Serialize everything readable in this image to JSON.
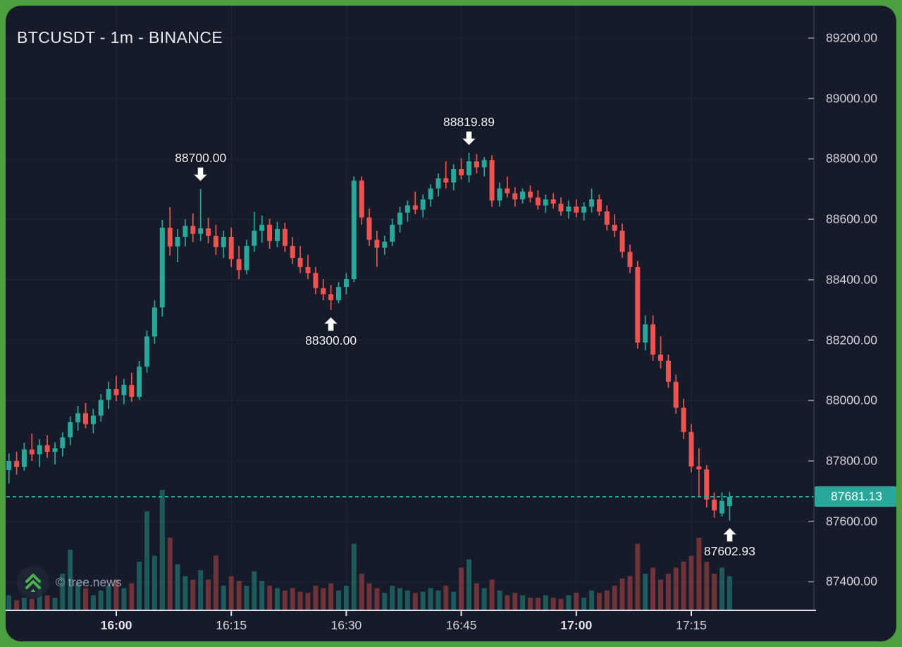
{
  "header": {
    "title": "BTCUSDT - 1m - BINANCE"
  },
  "watermark": {
    "icon": "double-chevron-up-icon",
    "text": "© tree.news"
  },
  "chart_data": {
    "type": "candlestick",
    "title": "BTCUSDT - 1m - BINANCE",
    "symbol": "BTCUSDT",
    "interval": "1m",
    "exchange": "BINANCE",
    "last_price": 87681.13,
    "last_price_label": "87681.13",
    "colors": {
      "up": "#2aa79b",
      "down": "#ef5350",
      "volume_up": "rgba(42,167,155,0.45)",
      "volume_down": "rgba(239,83,80,0.42)",
      "price_line": "#2aa79b",
      "frame": "#4c9f3f",
      "background": "#151b28",
      "axis_text": "#d1d4dc"
    },
    "y_axis": {
      "tick_labels": [
        "89200.00",
        "89000.00",
        "88800.00",
        "88600.00",
        "88400.00",
        "88200.00",
        "88000.00",
        "87800.00",
        "87600.00",
        "87400.00"
      ],
      "range": [
        87300,
        89330
      ],
      "grid": true
    },
    "x_axis": {
      "tick_labels": [
        {
          "label": "16:00",
          "bold": true
        },
        {
          "label": "16:15",
          "bold": false
        },
        {
          "label": "16:30",
          "bold": false
        },
        {
          "label": "16:45",
          "bold": false
        },
        {
          "label": "17:00",
          "bold": true
        },
        {
          "label": "17:15",
          "bold": false
        }
      ],
      "grid": true
    },
    "annotations": [
      {
        "label": "88700.00",
        "time": "16:11",
        "price": 88700.0,
        "direction": "down"
      },
      {
        "label": "88300.00",
        "time": "16:28",
        "price": 88300.0,
        "direction": "up"
      },
      {
        "label": "88819.89",
        "time": "16:46",
        "price": 88819.89,
        "direction": "down"
      },
      {
        "label": "87602.93",
        "time": "17:20",
        "price": 87602.93,
        "direction": "up"
      }
    ],
    "candles": [
      [
        "15:46",
        87770,
        87825,
        87725,
        87800,
        0.12
      ],
      [
        "15:47",
        87800,
        87830,
        87755,
        87780,
        0.08
      ],
      [
        "15:48",
        87780,
        87860,
        87768,
        87838,
        0.1
      ],
      [
        "15:49",
        87838,
        87890,
        87800,
        87822,
        0.09
      ],
      [
        "15:50",
        87822,
        87872,
        87780,
        87852,
        0.26
      ],
      [
        "15:51",
        87852,
        87885,
        87810,
        87830,
        0.12
      ],
      [
        "15:52",
        87830,
        87862,
        87788,
        87842,
        0.1
      ],
      [
        "15:53",
        87842,
        87895,
        87815,
        87878,
        0.3
      ],
      [
        "15:54",
        87878,
        87948,
        87852,
        87928,
        0.5
      ],
      [
        "15:55",
        87928,
        87982,
        87900,
        87958,
        0.22
      ],
      [
        "15:56",
        87958,
        87992,
        87908,
        87922,
        0.18
      ],
      [
        "15:57",
        87922,
        87972,
        87892,
        87950,
        0.12
      ],
      [
        "15:58",
        87950,
        88022,
        87930,
        88002,
        0.16
      ],
      [
        "15:59",
        88002,
        88062,
        87972,
        88038,
        0.2
      ],
      [
        "16:00",
        88038,
        88082,
        87998,
        88018,
        0.25
      ],
      [
        "16:01",
        88018,
        88072,
        87988,
        88052,
        0.18
      ],
      [
        "16:02",
        88052,
        88092,
        87995,
        88012,
        0.22
      ],
      [
        "16:03",
        88012,
        88132,
        88002,
        88112,
        0.4
      ],
      [
        "16:04",
        88112,
        88232,
        88092,
        88212,
        0.82
      ],
      [
        "16:05",
        88212,
        88332,
        88188,
        88308,
        0.45
      ],
      [
        "16:06",
        88308,
        88598,
        88278,
        88572,
        1.0
      ],
      [
        "16:07",
        88572,
        88640,
        88480,
        88510,
        0.6
      ],
      [
        "16:08",
        88510,
        88568,
        88458,
        88542,
        0.38
      ],
      [
        "16:09",
        88542,
        88600,
        88510,
        88578,
        0.28
      ],
      [
        "16:10",
        88578,
        88620,
        88525,
        88552,
        0.25
      ],
      [
        "16:11",
        88552,
        88700,
        88528,
        88570,
        0.33
      ],
      [
        "16:12",
        88570,
        88605,
        88520,
        88545,
        0.25
      ],
      [
        "16:13",
        88545,
        88582,
        88482,
        88508,
        0.45
      ],
      [
        "16:14",
        88508,
        88562,
        88472,
        88542,
        0.2
      ],
      [
        "16:15",
        88542,
        88572,
        88442,
        88468,
        0.28
      ],
      [
        "16:16",
        88468,
        88512,
        88402,
        88432,
        0.24
      ],
      [
        "16:17",
        88432,
        88532,
        88418,
        88512,
        0.2
      ],
      [
        "16:18",
        88512,
        88625,
        88492,
        88562,
        0.32
      ],
      [
        "16:19",
        88562,
        88612,
        88522,
        88582,
        0.24
      ],
      [
        "16:20",
        88582,
        88602,
        88502,
        88528,
        0.2
      ],
      [
        "16:21",
        88528,
        88592,
        88508,
        88568,
        0.18
      ],
      [
        "16:22",
        88568,
        88588,
        88492,
        88512,
        0.16
      ],
      [
        "16:23",
        88512,
        88542,
        88452,
        88472,
        0.18
      ],
      [
        "16:24",
        88472,
        88512,
        88422,
        88442,
        0.15
      ],
      [
        "16:25",
        88442,
        88482,
        88402,
        88422,
        0.14
      ],
      [
        "16:26",
        88422,
        88442,
        88352,
        88372,
        0.2
      ],
      [
        "16:27",
        88372,
        88402,
        88332,
        88352,
        0.18
      ],
      [
        "16:28",
        88352,
        88382,
        88300,
        88332,
        0.22
      ],
      [
        "16:29",
        88332,
        88392,
        88322,
        88376,
        0.16
      ],
      [
        "16:30",
        88376,
        88422,
        88352,
        88402,
        0.2
      ],
      [
        "16:31",
        88402,
        88742,
        88392,
        88728,
        0.55
      ],
      [
        "16:32",
        88728,
        88742,
        88582,
        88606,
        0.3
      ],
      [
        "16:33",
        88606,
        88636,
        88512,
        88532,
        0.22
      ],
      [
        "16:34",
        88532,
        88562,
        88442,
        88506,
        0.18
      ],
      [
        "16:35",
        88506,
        88546,
        88482,
        88526,
        0.14
      ],
      [
        "16:36",
        88526,
        88602,
        88512,
        88582,
        0.2
      ],
      [
        "16:37",
        88582,
        88642,
        88556,
        88622,
        0.18
      ],
      [
        "16:38",
        88622,
        88662,
        88592,
        88646,
        0.16
      ],
      [
        "16:39",
        88646,
        88692,
        88616,
        88632,
        0.14
      ],
      [
        "16:40",
        88632,
        88682,
        88606,
        88666,
        0.15
      ],
      [
        "16:41",
        88666,
        88716,
        88642,
        88702,
        0.18
      ],
      [
        "16:42",
        88702,
        88752,
        88676,
        88736,
        0.16
      ],
      [
        "16:43",
        88736,
        88792,
        88702,
        88722,
        0.2
      ],
      [
        "16:44",
        88722,
        88782,
        88696,
        88766,
        0.15
      ],
      [
        "16:45",
        88766,
        88802,
        88732,
        88746,
        0.35
      ],
      [
        "16:46",
        88746,
        88819.89,
        88722,
        88792,
        0.42
      ],
      [
        "16:47",
        88792,
        88816,
        88752,
        88772,
        0.22
      ],
      [
        "16:48",
        88772,
        88806,
        88742,
        88796,
        0.18
      ],
      [
        "16:49",
        88796,
        88812,
        88642,
        88662,
        0.25
      ],
      [
        "16:50",
        88662,
        88722,
        88642,
        88702,
        0.16
      ],
      [
        "16:51",
        88702,
        88742,
        88672,
        88686,
        0.12
      ],
      [
        "16:52",
        88686,
        88706,
        88642,
        88666,
        0.14
      ],
      [
        "16:53",
        88666,
        88702,
        88652,
        88692,
        0.12
      ],
      [
        "16:54",
        88692,
        88712,
        88656,
        88672,
        0.1
      ],
      [
        "16:55",
        88672,
        88696,
        88632,
        88646,
        0.1
      ],
      [
        "16:56",
        88646,
        88682,
        88622,
        88666,
        0.12
      ],
      [
        "16:57",
        88666,
        88686,
        88636,
        88652,
        0.1
      ],
      [
        "16:58",
        88652,
        88672,
        88612,
        88626,
        0.09
      ],
      [
        "16:59",
        88626,
        88662,
        88602,
        88642,
        0.12
      ],
      [
        "17:00",
        88642,
        88666,
        88606,
        88622,
        0.14
      ],
      [
        "17:01",
        88622,
        88656,
        88596,
        88642,
        0.1
      ],
      [
        "17:02",
        88642,
        88702,
        88622,
        88666,
        0.16
      ],
      [
        "17:03",
        88666,
        88682,
        88612,
        88626,
        0.14
      ],
      [
        "17:04",
        88626,
        88646,
        88562,
        88582,
        0.16
      ],
      [
        "17:05",
        88582,
        88616,
        88542,
        88562,
        0.2
      ],
      [
        "17:06",
        88562,
        88586,
        88472,
        88492,
        0.26
      ],
      [
        "17:07",
        88492,
        88516,
        88422,
        88442,
        0.28
      ],
      [
        "17:08",
        88442,
        88462,
        88172,
        88192,
        0.55
      ],
      [
        "17:09",
        88192,
        88282,
        88166,
        88252,
        0.3
      ],
      [
        "17:10",
        88252,
        88282,
        88132,
        88152,
        0.35
      ],
      [
        "17:11",
        88152,
        88212,
        88106,
        88132,
        0.25
      ],
      [
        "17:12",
        88132,
        88152,
        88042,
        88062,
        0.3
      ],
      [
        "17:13",
        88062,
        88086,
        87956,
        87976,
        0.35
      ],
      [
        "17:14",
        87976,
        88006,
        87872,
        87896,
        0.4
      ],
      [
        "17:15",
        87896,
        87922,
        87762,
        87782,
        0.45
      ],
      [
        "17:16",
        87782,
        87842,
        87682,
        87772,
        0.6
      ],
      [
        "17:17",
        87772,
        87786,
        87646,
        87672,
        0.4
      ],
      [
        "17:18",
        87672,
        87696,
        87612,
        87636,
        0.3
      ],
      [
        "17:19",
        87626,
        87696,
        87616,
        87668,
        0.35
      ],
      [
        "17:20",
        87650,
        87698,
        87602.93,
        87681.13,
        0.28
      ]
    ]
  }
}
